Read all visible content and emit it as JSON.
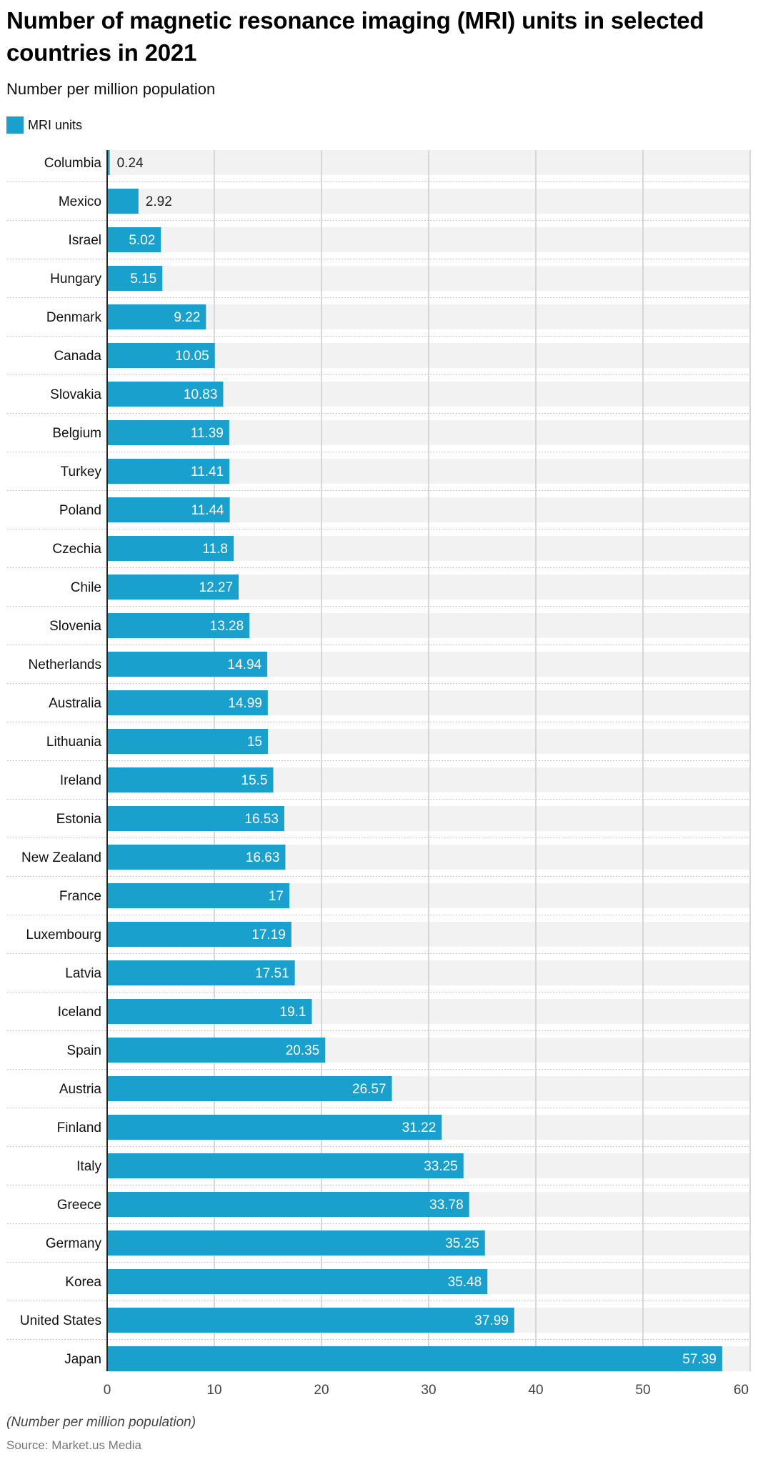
{
  "header": {
    "title": "Number of magnetic resonance imaging (MRI) units in selected countries in 2021",
    "subtitle": "Number per million population"
  },
  "legend": {
    "label": "MRI units",
    "color": "#1aa0cc"
  },
  "footer": {
    "note": "(Number per million population)",
    "source": "Source: Market.us Media"
  },
  "chart_data": {
    "type": "bar",
    "orientation": "horizontal",
    "title": "Number of magnetic resonance imaging (MRI) units in selected countries in 2021",
    "subtitle": "Number per million population",
    "xlabel": "",
    "ylabel": "",
    "xlim": [
      0,
      60
    ],
    "x_ticks": [
      0,
      10,
      20,
      30,
      40,
      50,
      60
    ],
    "grid": true,
    "legend": {
      "position": "top-left",
      "entries": [
        "MRI units"
      ]
    },
    "categories": [
      "Columbia",
      "Mexico",
      "Israel",
      "Hungary",
      "Denmark",
      "Canada",
      "Slovakia",
      "Belgium",
      "Turkey",
      "Poland",
      "Czechia",
      "Chile",
      "Slovenia",
      "Netherlands",
      "Australia",
      "Lithuania",
      "Ireland",
      "Estonia",
      "New Zealand",
      "France",
      "Luxembourg",
      "Latvia",
      "Iceland",
      "Spain",
      "Austria",
      "Finland",
      "Italy",
      "Greece",
      "Germany",
      "Korea",
      "United States",
      "Japan"
    ],
    "series": [
      {
        "name": "MRI units",
        "color": "#1aa0cc",
        "values": [
          0.24,
          2.92,
          5.02,
          5.15,
          9.22,
          10.05,
          10.83,
          11.39,
          11.41,
          11.44,
          11.8,
          12.27,
          13.28,
          14.94,
          14.99,
          15,
          15.5,
          16.53,
          16.63,
          17,
          17.19,
          17.51,
          19.1,
          20.35,
          26.57,
          31.22,
          33.25,
          33.78,
          35.25,
          35.48,
          37.99,
          57.39
        ],
        "labels": [
          "0.24",
          "2.92",
          "5.02",
          "5.15",
          "9.22",
          "10.05",
          "10.83",
          "11.39",
          "11.41",
          "11.44",
          "11.8",
          "12.27",
          "13.28",
          "14.94",
          "14.99",
          "15",
          "15.5",
          "16.53",
          "16.63",
          "17",
          "17.19",
          "17.51",
          "19.1",
          "20.35",
          "26.57",
          "31.22",
          "33.25",
          "33.78",
          "35.25",
          "35.48",
          "37.99",
          "57.39"
        ]
      }
    ]
  }
}
